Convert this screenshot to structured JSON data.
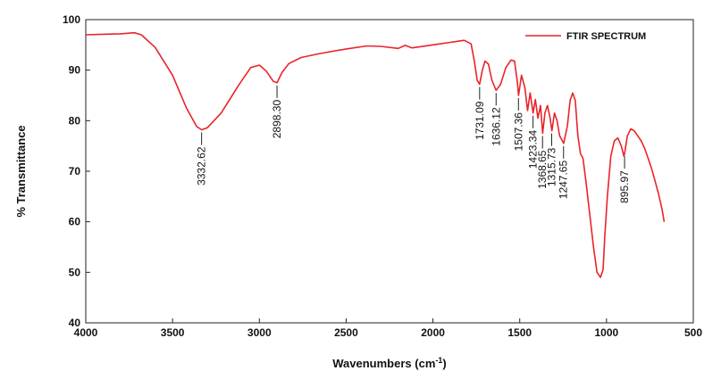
{
  "chart_data": {
    "type": "line",
    "xlabel": "Wavenumbers (cm",
    "xlabel_sup": "-1",
    "xlabel_close": ")",
    "ylabel": "% Transmittance",
    "xlim": [
      4000,
      500
    ],
    "ylim": [
      40,
      100
    ],
    "x_ticks": [
      4000,
      3500,
      3000,
      2500,
      2000,
      1500,
      1000,
      500
    ],
    "y_ticks": [
      40,
      50,
      60,
      70,
      80,
      90,
      100
    ],
    "legend": {
      "position": "top-right",
      "label": "FTIR SPECTRUM"
    },
    "series_color": "#e8242b",
    "series": [
      {
        "name": "FTIR SPECTRUM",
        "x": [
          4000,
          3900,
          3800,
          3720,
          3680,
          3600,
          3500,
          3420,
          3360,
          3332,
          3300,
          3220,
          3120,
          3050,
          3000,
          2960,
          2920,
          2898,
          2870,
          2830,
          2760,
          2650,
          2500,
          2380,
          2300,
          2200,
          2160,
          2120,
          2000,
          1900,
          1820,
          1780,
          1760,
          1745,
          1731,
          1715,
          1700,
          1680,
          1660,
          1636,
          1610,
          1580,
          1550,
          1530,
          1515,
          1507,
          1490,
          1470,
          1455,
          1440,
          1423,
          1410,
          1395,
          1380,
          1368,
          1355,
          1340,
          1325,
          1315,
          1300,
          1285,
          1270,
          1247,
          1225,
          1210,
          1195,
          1180,
          1165,
          1150,
          1135,
          1115,
          1095,
          1075,
          1055,
          1035,
          1020,
          1010,
          995,
          975,
          955,
          935,
          915,
          900,
          896,
          880,
          860,
          840,
          820,
          800,
          780,
          760,
          740,
          720,
          700,
          680,
          668
        ],
        "y": [
          97.0,
          97.1,
          97.2,
          97.4,
          97.0,
          94.5,
          89.0,
          82.5,
          78.8,
          78.2,
          78.6,
          81.5,
          87.0,
          90.5,
          91.0,
          89.8,
          87.8,
          87.5,
          89.5,
          91.3,
          92.5,
          93.3,
          94.2,
          94.8,
          94.7,
          94.3,
          94.9,
          94.4,
          95.0,
          95.5,
          95.9,
          95.2,
          91.5,
          88.0,
          87.2,
          90.0,
          91.8,
          91.2,
          88.0,
          86.0,
          87.2,
          90.5,
          92.0,
          91.8,
          88.0,
          85.0,
          89.0,
          86.5,
          82.0,
          85.5,
          81.5,
          84.2,
          80.5,
          83.0,
          77.5,
          81.5,
          83.0,
          80.5,
          78.0,
          81.5,
          80.0,
          77.0,
          75.5,
          79.0,
          84.0,
          85.5,
          84.0,
          77.0,
          73.5,
          72.5,
          67.0,
          61.0,
          55.0,
          50.0,
          49.0,
          50.5,
          57.0,
          65.0,
          73.0,
          76.0,
          76.6,
          75.0,
          73.0,
          73.5,
          77.0,
          78.4,
          78.0,
          77.0,
          76.0,
          74.5,
          72.5,
          70.5,
          68.0,
          65.5,
          62.5,
          60.0
        ]
      }
    ],
    "peak_annotations": [
      {
        "label": "3332.62",
        "x": 3332.62,
        "y": 78.2
      },
      {
        "label": "2898.30",
        "x": 2898.3,
        "y": 87.5
      },
      {
        "label": "1731.09",
        "x": 1731.09,
        "y": 87.2
      },
      {
        "label": "1636.12",
        "x": 1636.12,
        "y": 86.0
      },
      {
        "label": "1507.36",
        "x": 1507.36,
        "y": 85.0
      },
      {
        "label": "1423.34",
        "x": 1423.34,
        "y": 81.5
      },
      {
        "label": "1368.65",
        "x": 1368.65,
        "y": 77.5
      },
      {
        "label": "1315.73",
        "x": 1315.73,
        "y": 78.0
      },
      {
        "label": "1247.65",
        "x": 1247.65,
        "y": 75.5
      },
      {
        "label": "895.97",
        "x": 895.97,
        "y": 73.5
      }
    ]
  }
}
